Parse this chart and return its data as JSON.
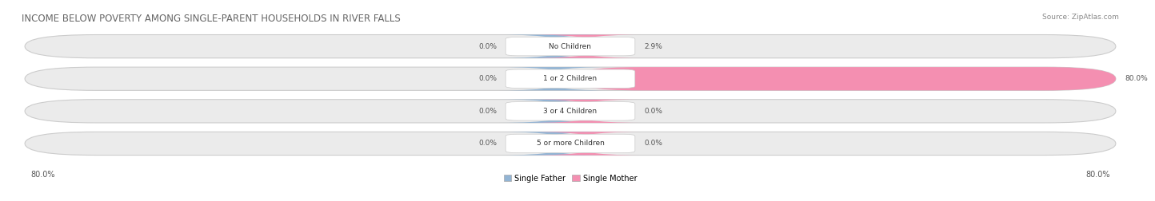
{
  "title": "INCOME BELOW POVERTY AMONG SINGLE-PARENT HOUSEHOLDS IN RIVER FALLS",
  "source": "Source: ZipAtlas.com",
  "categories": [
    "No Children",
    "1 or 2 Children",
    "3 or 4 Children",
    "5 or more Children"
  ],
  "single_father": [
    0.0,
    0.0,
    0.0,
    0.0
  ],
  "single_mother": [
    2.9,
    80.0,
    0.0,
    0.0
  ],
  "axis_left_label": "80.0%",
  "axis_right_label": "80.0%",
  "color_father": "#92b4d4",
  "color_mother": "#f48fb1",
  "color_bar_bg": "#ebebeb",
  "color_label_bg": "#ffffff",
  "max_val": 80.0,
  "title_fontsize": 8.5,
  "source_fontsize": 6.5,
  "value_fontsize": 6.5,
  "cat_fontsize": 6.5,
  "legend_fontsize": 7
}
